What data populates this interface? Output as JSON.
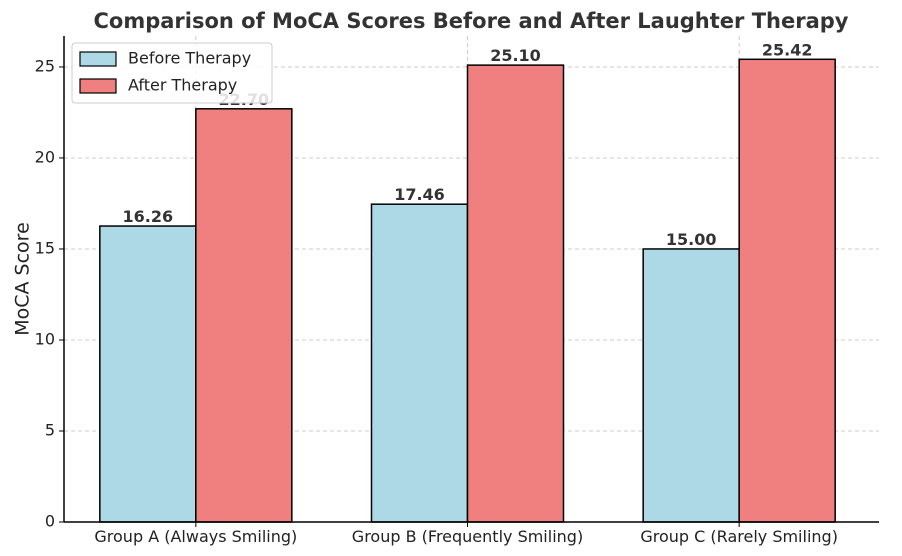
{
  "chart_data": {
    "type": "bar",
    "title": "Comparison of MoCA Scores Before and After Laughter Therapy",
    "xlabel": "",
    "ylabel": "MoCA Score",
    "categories": [
      "Group A (Always Smiling)",
      "Group B (Frequently Smiling)",
      "Group C (Rarely Smiling)"
    ],
    "series": [
      {
        "name": "Before Therapy",
        "color": "#add8e6",
        "values": [
          16.26,
          17.46,
          15.0
        ],
        "labels": [
          "16.26",
          "17.46",
          "15.00"
        ]
      },
      {
        "name": "After Therapy",
        "color": "#f08080",
        "values": [
          22.7,
          25.1,
          25.42
        ],
        "labels": [
          "22.70",
          "25.10",
          "25.42"
        ]
      }
    ],
    "ylim": [
      0,
      26.7
    ],
    "yticks": [
      0,
      5,
      10,
      15,
      20,
      25
    ],
    "grid": true,
    "legend_position": "top-left"
  }
}
